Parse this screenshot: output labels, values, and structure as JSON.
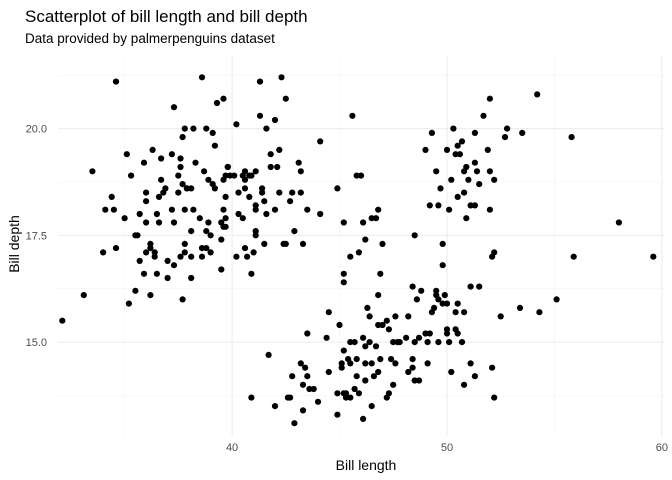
{
  "chart_data": {
    "type": "scatter",
    "title": "Scatterplot of bill length and bill depth",
    "subtitle": "Data provided by palmerpenguins dataset",
    "xlabel": "Bill length",
    "ylabel": "Bill depth",
    "xlim": [
      31.9,
      60.1
    ],
    "ylim": [
      12.8,
      21.7
    ],
    "x_ticks": [
      40,
      50,
      60
    ],
    "x_tick_labels": [
      "40",
      "50",
      "60"
    ],
    "y_ticks": [
      15.0,
      17.5,
      20.0
    ],
    "y_tick_labels": [
      "15.0",
      "17.5",
      "20.0"
    ],
    "grid": true,
    "legend": "none",
    "point_color": "#000000",
    "series": [
      {
        "points": [
          [
            32.1,
            15.5
          ],
          [
            33.1,
            16.1
          ],
          [
            33.5,
            19.0
          ],
          [
            34.0,
            17.1
          ],
          [
            34.1,
            18.1
          ],
          [
            34.4,
            18.4
          ],
          [
            34.5,
            18.1
          ],
          [
            34.6,
            21.1
          ],
          [
            34.6,
            17.2
          ],
          [
            35.0,
            17.9
          ],
          [
            35.1,
            19.4
          ],
          [
            35.2,
            15.9
          ],
          [
            35.3,
            18.9
          ],
          [
            35.5,
            16.2
          ],
          [
            35.5,
            17.5
          ],
          [
            35.6,
            17.5
          ],
          [
            35.7,
            16.9
          ],
          [
            35.7,
            18.0
          ],
          [
            35.9,
            19.2
          ],
          [
            35.9,
            16.6
          ],
          [
            36.0,
            18.5
          ],
          [
            36.0,
            17.8
          ],
          [
            36.0,
            17.1
          ],
          [
            36.0,
            18.3
          ],
          [
            36.2,
            17.2
          ],
          [
            36.2,
            17.3
          ],
          [
            36.2,
            16.1
          ],
          [
            36.3,
            19.5
          ],
          [
            36.4,
            17.0
          ],
          [
            36.4,
            17.1
          ],
          [
            36.5,
            16.6
          ],
          [
            36.5,
            18.0
          ],
          [
            36.6,
            17.8
          ],
          [
            36.6,
            18.4
          ],
          [
            36.7,
            19.3
          ],
          [
            36.7,
            18.8
          ],
          [
            36.8,
            18.5
          ],
          [
            36.9,
            18.6
          ],
          [
            37.0,
            16.9
          ],
          [
            37.0,
            16.5
          ],
          [
            37.2,
            18.1
          ],
          [
            37.2,
            19.4
          ],
          [
            37.3,
            20.5
          ],
          [
            37.3,
            17.8
          ],
          [
            37.3,
            16.8
          ],
          [
            37.5,
            18.9
          ],
          [
            37.5,
            18.5
          ],
          [
            37.6,
            19.1
          ],
          [
            37.6,
            17.0
          ],
          [
            37.6,
            19.3
          ],
          [
            37.7,
            18.7
          ],
          [
            37.7,
            16.0
          ],
          [
            37.7,
            19.8
          ],
          [
            37.8,
            18.1
          ],
          [
            37.8,
            17.1
          ],
          [
            37.8,
            17.3
          ],
          [
            37.8,
            20.0
          ],
          [
            37.9,
            18.6
          ],
          [
            37.9,
            18.6
          ],
          [
            38.1,
            18.6
          ],
          [
            38.1,
            17.0
          ],
          [
            38.1,
            16.5
          ],
          [
            38.1,
            17.6
          ],
          [
            38.2,
            18.1
          ],
          [
            38.2,
            20.0
          ],
          [
            38.3,
            19.2
          ],
          [
            38.5,
            17.9
          ],
          [
            38.6,
            21.2
          ],
          [
            38.6,
            17.2
          ],
          [
            38.6,
            17.0
          ],
          [
            38.7,
            19.0
          ],
          [
            38.8,
            17.2
          ],
          [
            38.8,
            20.0
          ],
          [
            38.8,
            17.6
          ],
          [
            38.9,
            17.8
          ],
          [
            38.9,
            18.8
          ],
          [
            39.0,
            17.1
          ],
          [
            39.0,
            17.5
          ],
          [
            39.1,
            18.7
          ],
          [
            39.1,
            19.9
          ],
          [
            39.2,
            19.6
          ],
          [
            39.2,
            18.6
          ],
          [
            39.3,
            20.6
          ],
          [
            39.5,
            17.4
          ],
          [
            39.5,
            16.7
          ],
          [
            39.5,
            17.8
          ],
          [
            39.6,
            17.7
          ],
          [
            39.6,
            18.8
          ],
          [
            39.6,
            20.7
          ],
          [
            39.6,
            18.1
          ],
          [
            39.7,
            18.4
          ],
          [
            39.7,
            17.7
          ],
          [
            39.7,
            18.9
          ],
          [
            39.7,
            17.9
          ],
          [
            39.8,
            19.1
          ],
          [
            39.8,
            19.1
          ],
          [
            39.9,
            18.9
          ],
          [
            40.1,
            18.9
          ],
          [
            40.2,
            17.0
          ],
          [
            40.2,
            20.1
          ],
          [
            40.3,
            18.0
          ],
          [
            40.3,
            18.5
          ],
          [
            40.5,
            17.9
          ],
          [
            40.5,
            18.9
          ],
          [
            40.6,
            18.6
          ],
          [
            40.6,
            19.0
          ],
          [
            40.6,
            17.2
          ],
          [
            40.6,
            18.8
          ],
          [
            40.7,
            17.0
          ],
          [
            40.8,
            18.4
          ],
          [
            40.8,
            18.9
          ],
          [
            40.9,
            16.6
          ],
          [
            40.9,
            18.9
          ],
          [
            41.0,
            17.1
          ],
          [
            41.1,
            17.6
          ],
          [
            41.1,
            18.2
          ],
          [
            41.1,
            19.0
          ],
          [
            41.1,
            18.1
          ],
          [
            41.1,
            17.5
          ],
          [
            41.3,
            20.3
          ],
          [
            41.3,
            21.1
          ],
          [
            41.4,
            18.6
          ],
          [
            41.4,
            18.5
          ],
          [
            41.5,
            17.3
          ],
          [
            41.5,
            18.3
          ],
          [
            41.6,
            18.0
          ],
          [
            41.6,
            20.0
          ],
          [
            41.8,
            19.4
          ],
          [
            41.8,
            19.1
          ],
          [
            42.0,
            20.2
          ],
          [
            42.0,
            18.1
          ],
          [
            42.1,
            19.1
          ],
          [
            42.2,
            18.5
          ],
          [
            42.2,
            19.5
          ],
          [
            42.3,
            21.2
          ],
          [
            42.4,
            17.3
          ],
          [
            42.5,
            20.7
          ],
          [
            42.5,
            17.3
          ],
          [
            42.7,
            18.3
          ],
          [
            42.8,
            18.5
          ],
          [
            42.9,
            17.6
          ],
          [
            43.1,
            19.2
          ],
          [
            43.2,
            18.5
          ],
          [
            43.2,
            19.0
          ],
          [
            43.3,
            17.3
          ],
          [
            43.5,
            18.1
          ],
          [
            44.1,
            19.7
          ],
          [
            44.1,
            18.0
          ],
          [
            44.9,
            18.6
          ],
          [
            45.2,
            17.8
          ],
          [
            45.2,
            16.6
          ],
          [
            45.5,
            17.0
          ],
          [
            45.6,
            20.3
          ],
          [
            45.8,
            18.9
          ],
          [
            45.9,
            17.1
          ],
          [
            46.0,
            18.9
          ],
          [
            46.1,
            17.8
          ],
          [
            46.2,
            17.4
          ],
          [
            46.5,
            17.9
          ],
          [
            46.7,
            17.9
          ],
          [
            46.8,
            18.1
          ],
          [
            46.9,
            16.6
          ],
          [
            47.0,
            17.3
          ],
          [
            48.5,
            17.5
          ],
          [
            49.0,
            19.5
          ],
          [
            49.2,
            18.2
          ],
          [
            49.3,
            19.9
          ],
          [
            49.5,
            19.0
          ],
          [
            49.6,
            18.2
          ],
          [
            49.7,
            18.6
          ],
          [
            49.8,
            17.3
          ],
          [
            50.0,
            19.5
          ],
          [
            50.1,
            18.1
          ],
          [
            50.2,
            18.8
          ],
          [
            50.3,
            20.0
          ],
          [
            50.4,
            19.4
          ],
          [
            50.5,
            19.6
          ],
          [
            50.5,
            18.4
          ],
          [
            50.6,
            19.4
          ],
          [
            50.7,
            19.7
          ],
          [
            50.8,
            18.5
          ],
          [
            50.8,
            19.0
          ],
          [
            50.9,
            17.9
          ],
          [
            50.9,
            19.1
          ],
          [
            51.0,
            18.8
          ],
          [
            51.1,
            18.2
          ],
          [
            51.3,
            19.2
          ],
          [
            51.3,
            18.2
          ],
          [
            51.3,
            19.9
          ],
          [
            51.4,
            19.0
          ],
          [
            51.5,
            18.7
          ],
          [
            51.7,
            20.3
          ],
          [
            51.9,
            19.5
          ],
          [
            52.0,
            18.1
          ],
          [
            52.0,
            19.0
          ],
          [
            52.0,
            20.7
          ],
          [
            52.2,
            18.8
          ],
          [
            52.7,
            19.8
          ],
          [
            52.8,
            20.0
          ],
          [
            53.5,
            19.9
          ],
          [
            54.2,
            20.8
          ],
          [
            55.8,
            19.8
          ],
          [
            58.0,
            17.8
          ],
          [
            40.9,
            13.7
          ],
          [
            41.7,
            14.7
          ],
          [
            42.0,
            13.5
          ],
          [
            42.6,
            13.7
          ],
          [
            42.7,
            13.7
          ],
          [
            42.8,
            14.2
          ],
          [
            42.9,
            13.1
          ],
          [
            43.2,
            14.5
          ],
          [
            43.3,
            13.4
          ],
          [
            43.3,
            14.0
          ],
          [
            43.4,
            14.4
          ],
          [
            43.5,
            14.2
          ],
          [
            43.5,
            15.2
          ],
          [
            43.6,
            13.9
          ],
          [
            43.8,
            13.9
          ],
          [
            44.0,
            13.6
          ],
          [
            44.4,
            15.1
          ],
          [
            44.5,
            14.3
          ],
          [
            44.5,
            15.7
          ],
          [
            44.9,
            13.3
          ],
          [
            44.9,
            13.8
          ],
          [
            45.0,
            15.4
          ],
          [
            45.1,
            14.5
          ],
          [
            45.1,
            14.4
          ],
          [
            45.2,
            13.8
          ],
          [
            45.2,
            14.8
          ],
          [
            45.2,
            16.4
          ],
          [
            45.3,
            13.7
          ],
          [
            45.3,
            13.8
          ],
          [
            45.4,
            14.6
          ],
          [
            45.5,
            13.7
          ],
          [
            45.5,
            14.5
          ],
          [
            45.5,
            15.0
          ],
          [
            45.7,
            13.9
          ],
          [
            45.7,
            15.0
          ],
          [
            45.8,
            14.2
          ],
          [
            45.8,
            14.6
          ],
          [
            46.1,
            13.2
          ],
          [
            46.1,
            15.1
          ],
          [
            46.2,
            14.1
          ],
          [
            46.2,
            14.5
          ],
          [
            46.2,
            14.9
          ],
          [
            46.3,
            15.8
          ],
          [
            46.4,
            15.0
          ],
          [
            46.4,
            15.6
          ],
          [
            46.5,
            13.5
          ],
          [
            46.5,
            14.5
          ],
          [
            46.6,
            14.2
          ],
          [
            46.8,
            14.3
          ],
          [
            46.8,
            15.4
          ],
          [
            46.8,
            16.1
          ],
          [
            46.9,
            14.6
          ],
          [
            47.0,
            15.4
          ],
          [
            47.2,
            13.7
          ],
          [
            47.2,
            15.5
          ],
          [
            47.3,
            13.8
          ],
          [
            47.3,
            15.3
          ],
          [
            47.4,
            14.6
          ],
          [
            47.5,
            14.0
          ],
          [
            47.5,
            15.0
          ],
          [
            47.6,
            14.5
          ],
          [
            47.7,
            15.0
          ],
          [
            47.8,
            15.0
          ],
          [
            48.1,
            15.1
          ],
          [
            48.2,
            14.3
          ],
          [
            48.2,
            15.6
          ],
          [
            48.4,
            14.4
          ],
          [
            48.4,
            14.6
          ],
          [
            48.4,
            16.3
          ],
          [
            48.5,
            14.1
          ],
          [
            48.5,
            15.0
          ],
          [
            48.6,
            16.0
          ],
          [
            48.7,
            14.1
          ],
          [
            48.7,
            15.1
          ],
          [
            48.8,
            16.2
          ],
          [
            49.0,
            15.2
          ],
          [
            49.1,
            14.5
          ],
          [
            49.1,
            15.0
          ],
          [
            49.2,
            15.2
          ],
          [
            49.3,
            15.7
          ],
          [
            49.4,
            15.8
          ],
          [
            49.5,
            16.1
          ],
          [
            49.5,
            16.2
          ],
          [
            49.6,
            15.0
          ],
          [
            49.6,
            16.0
          ],
          [
            49.8,
            15.9
          ],
          [
            49.8,
            16.8
          ],
          [
            49.9,
            16.1
          ],
          [
            50.0,
            15.2
          ],
          [
            50.0,
            15.3
          ],
          [
            50.0,
            15.9
          ],
          [
            50.1,
            15.0
          ],
          [
            50.2,
            14.3
          ],
          [
            50.4,
            15.3
          ],
          [
            50.4,
            15.7
          ],
          [
            50.5,
            15.2
          ],
          [
            50.5,
            15.9
          ],
          [
            50.7,
            15.0
          ],
          [
            50.8,
            15.7
          ],
          [
            51.1,
            14.5
          ],
          [
            51.1,
            16.3
          ],
          [
            51.3,
            14.2
          ],
          [
            51.5,
            16.3
          ],
          [
            52.1,
            17.0
          ],
          [
            52.2,
            17.1
          ],
          [
            52.5,
            15.6
          ],
          [
            53.4,
            15.8
          ],
          [
            54.3,
            15.7
          ],
          [
            55.1,
            16.0
          ],
          [
            55.9,
            17.0
          ],
          [
            59.6,
            17.0
          ],
          [
            52.1,
            14.4
          ],
          [
            50.8,
            14.0
          ],
          [
            52.2,
            13.7
          ],
          [
            47.6,
            15.6
          ],
          [
            45.9,
            13.8
          ],
          [
            46.7,
            14.9
          ]
        ]
      }
    ]
  }
}
